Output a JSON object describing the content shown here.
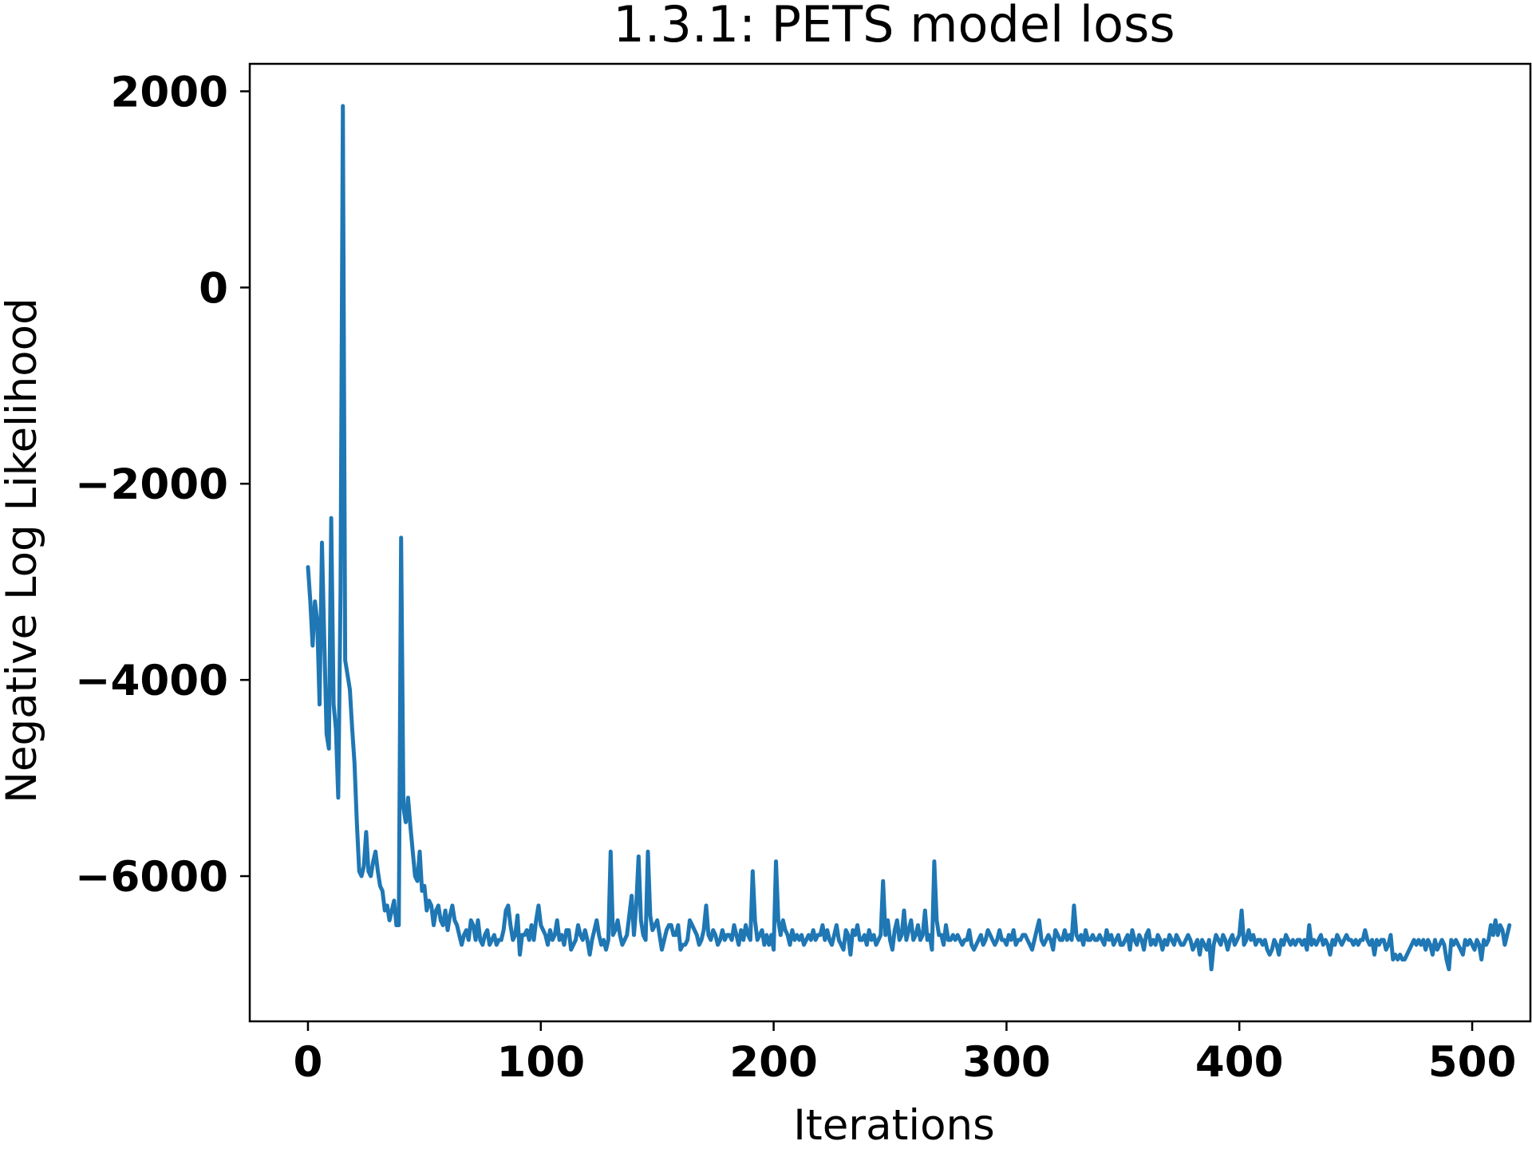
{
  "chart_data": {
    "type": "line",
    "title": "1.3.1: PETS model loss",
    "xlabel": "Iterations",
    "ylabel": "Negative Log Likelihood",
    "xlim": [
      -25,
      525
    ],
    "ylim": [
      -7480,
      2280
    ],
    "xticks": [
      0,
      100,
      200,
      300,
      400,
      500
    ],
    "xtick_labels": [
      "0",
      "100",
      "200",
      "300",
      "400",
      "500"
    ],
    "yticks": [
      2000,
      0,
      -2000,
      -4000,
      -6000
    ],
    "ytick_labels": [
      "2000",
      "0",
      "−2000",
      "−4000",
      "−6000"
    ],
    "grid": false,
    "legend": "none",
    "colors": {
      "series": "#1f77b4"
    },
    "series": [
      {
        "x_start": 0,
        "x_step": 1,
        "values": [
          -2850,
          -3200,
          -3650,
          -3200,
          -3400,
          -4250,
          -2600,
          -3600,
          -4550,
          -4700,
          -2350,
          -4250,
          -4500,
          -5200,
          -3100,
          1850,
          -3800,
          -3950,
          -4100,
          -4500,
          -4850,
          -5450,
          -5950,
          -6000,
          -5900,
          -5550,
          -5950,
          -6000,
          -5850,
          -5750,
          -5950,
          -6100,
          -6150,
          -6350,
          -6300,
          -6450,
          -6350,
          -6250,
          -6500,
          -6500,
          -2550,
          -5300,
          -5450,
          -5200,
          -5500,
          -5750,
          -6000,
          -6050,
          -5750,
          -6150,
          -6100,
          -6350,
          -6250,
          -6300,
          -6500,
          -6350,
          -6300,
          -6450,
          -6500,
          -6350,
          -6550,
          -6400,
          -6300,
          -6450,
          -6500,
          -6600,
          -6700,
          -6600,
          -6550,
          -6650,
          -6450,
          -6500,
          -6650,
          -6450,
          -6650,
          -6700,
          -6600,
          -6550,
          -6700,
          -6650,
          -6600,
          -6700,
          -6650,
          -6650,
          -6550,
          -6350,
          -6300,
          -6500,
          -6650,
          -6600,
          -6400,
          -6800,
          -6600,
          -6600,
          -6550,
          -6650,
          -6500,
          -6650,
          -6450,
          -6300,
          -6500,
          -6550,
          -6600,
          -6700,
          -6550,
          -6650,
          -6600,
          -6450,
          -6650,
          -6600,
          -6700,
          -6550,
          -6550,
          -6750,
          -6700,
          -6650,
          -6500,
          -6600,
          -6650,
          -6550,
          -6650,
          -6800,
          -6650,
          -6550,
          -6450,
          -6600,
          -6700,
          -6650,
          -6750,
          -6650,
          -5750,
          -6600,
          -6550,
          -6450,
          -6600,
          -6700,
          -6650,
          -6600,
          -6400,
          -6200,
          -6600,
          -6300,
          -5800,
          -6450,
          -6600,
          -6650,
          -5750,
          -6400,
          -6550,
          -6500,
          -6450,
          -6600,
          -6750,
          -6650,
          -6550,
          -6500,
          -6500,
          -6600,
          -6600,
          -6500,
          -6750,
          -6700,
          -6700,
          -6650,
          -6450,
          -6500,
          -6550,
          -6600,
          -6700,
          -6650,
          -6550,
          -6300,
          -6600,
          -6650,
          -6550,
          -6600,
          -6700,
          -6650,
          -6550,
          -6650,
          -6600,
          -6600,
          -6650,
          -6500,
          -6600,
          -6700,
          -6550,
          -6650,
          -6500,
          -6600,
          -6650,
          -5950,
          -6450,
          -6650,
          -6600,
          -6550,
          -6700,
          -6600,
          -6700,
          -6600,
          -6750,
          -5850,
          -6450,
          -6600,
          -6450,
          -6550,
          -6600,
          -6700,
          -6550,
          -6650,
          -6600,
          -6650,
          -6600,
          -6700,
          -6650,
          -6600,
          -6650,
          -6550,
          -6650,
          -6600,
          -6600,
          -6500,
          -6650,
          -6550,
          -6650,
          -6700,
          -6600,
          -6500,
          -6650,
          -6700,
          -6750,
          -6550,
          -6600,
          -6800,
          -6550,
          -6600,
          -6500,
          -6650,
          -6650,
          -6600,
          -6700,
          -6550,
          -6650,
          -6600,
          -6700,
          -6650,
          -6600,
          -6050,
          -6600,
          -6450,
          -6650,
          -6750,
          -6550,
          -6450,
          -6650,
          -6600,
          -6350,
          -6650,
          -6550,
          -6450,
          -6650,
          -6600,
          -6500,
          -6650,
          -6600,
          -6350,
          -6650,
          -6600,
          -6750,
          -5850,
          -6450,
          -6600,
          -6600,
          -6700,
          -6500,
          -6650,
          -6650,
          -6600,
          -6650,
          -6600,
          -6650,
          -6700,
          -6650,
          -6650,
          -6550,
          -6700,
          -6750,
          -6700,
          -6650,
          -6600,
          -6700,
          -6650,
          -6550,
          -6600,
          -6650,
          -6700,
          -6650,
          -6550,
          -6650,
          -6650,
          -6700,
          -6600,
          -6650,
          -6550,
          -6700,
          -6650,
          -6650,
          -6600,
          -6600,
          -6650,
          -6700,
          -6750,
          -6650,
          -6550,
          -6450,
          -6650,
          -6700,
          -6650,
          -6600,
          -6650,
          -6750,
          -6550,
          -6600,
          -6650,
          -6650,
          -6550,
          -6650,
          -6600,
          -6650,
          -6300,
          -6600,
          -6650,
          -6600,
          -6700,
          -6550,
          -6650,
          -6650,
          -6600,
          -6650,
          -6650,
          -6600,
          -6650,
          -6700,
          -6550,
          -6650,
          -6600,
          -6700,
          -6650,
          -6600,
          -6700,
          -6700,
          -6650,
          -6600,
          -6750,
          -6550,
          -6650,
          -6700,
          -6600,
          -6650,
          -6750,
          -6600,
          -6550,
          -6700,
          -6650,
          -6700,
          -6600,
          -6650,
          -6750,
          -6650,
          -6700,
          -6600,
          -6650,
          -6700,
          -6600,
          -6650,
          -6700,
          -6700,
          -6650,
          -6600,
          -6650,
          -6750,
          -6700,
          -6650,
          -6800,
          -6650,
          -6700,
          -6750,
          -6650,
          -6950,
          -6700,
          -6600,
          -6650,
          -6700,
          -6600,
          -6650,
          -6750,
          -6650,
          -6600,
          -6700,
          -6650,
          -6600,
          -6350,
          -6700,
          -6650,
          -6550,
          -6650,
          -6600,
          -6700,
          -6650,
          -6650,
          -6700,
          -6650,
          -6750,
          -6800,
          -6750,
          -6650,
          -6700,
          -6800,
          -6650,
          -6700,
          -6600,
          -6650,
          -6700,
          -6650,
          -6700,
          -6650,
          -6650,
          -6700,
          -6650,
          -6750,
          -6500,
          -6700,
          -6650,
          -6700,
          -6650,
          -6600,
          -6700,
          -6650,
          -6700,
          -6800,
          -6650,
          -6700,
          -6600,
          -6650,
          -6700,
          -6650,
          -6600,
          -6650,
          -6650,
          -6700,
          -6650,
          -6700,
          -6650,
          -6650,
          -6550,
          -6650,
          -6700,
          -6650,
          -6800,
          -6650,
          -6700,
          -6650,
          -6650,
          -6750,
          -6700,
          -6600,
          -6850,
          -6800,
          -6850,
          -6800,
          -6850,
          -6850,
          -6800,
          -6750,
          -6700,
          -6650,
          -6700,
          -6650,
          -6700,
          -6650,
          -6750,
          -6650,
          -6700,
          -6800,
          -6650,
          -6750,
          -6700,
          -6650,
          -6700,
          -6850,
          -6950,
          -6650,
          -6700,
          -6650,
          -6700,
          -6750,
          -6800,
          -6650,
          -6700,
          -6650,
          -6700,
          -6750,
          -6650,
          -6700,
          -6850,
          -6650,
          -6700,
          -6650,
          -6500,
          -6600,
          -6450,
          -6600,
          -6500,
          -6550,
          -6700,
          -6600,
          -6500
        ]
      }
    ]
  }
}
